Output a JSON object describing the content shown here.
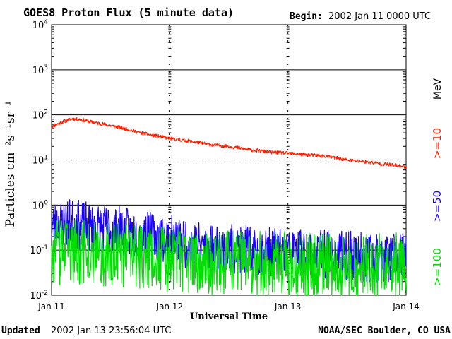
{
  "header": {
    "title": "GOES8 Proton Flux (5 minute data)",
    "begin_label": "Begin:",
    "begin_value": "2002 Jan 11 0000 UTC"
  },
  "footer": {
    "updated_label": "Updated",
    "updated_value": "2002 Jan 13 23:56:04 UTC",
    "source": "NOAA/SEC Boulder, CO USA"
  },
  "chart_data": {
    "type": "line",
    "title": "GOES8 Proton Flux (5 minute data)",
    "xlabel": "Universal Time",
    "ylabel": "Particles cm⁻²s⁻¹sr⁻¹",
    "y_scale": "log",
    "ylim": [
      0.01,
      10000
    ],
    "y_ticks": [
      {
        "value": 0.01,
        "base": "10",
        "exp": "-2"
      },
      {
        "value": 0.1,
        "base": "10",
        "exp": "-1"
      },
      {
        "value": 1,
        "base": "10",
        "exp": "0"
      },
      {
        "value": 10,
        "base": "10",
        "exp": "1"
      },
      {
        "value": 100,
        "base": "10",
        "exp": "2"
      },
      {
        "value": 1000,
        "base": "10",
        "exp": "3"
      },
      {
        "value": 10000,
        "base": "10",
        "exp": "4"
      }
    ],
    "x_range_hours": [
      0,
      72
    ],
    "x_ticks": [
      {
        "hour": 0,
        "label": "Jan 11"
      },
      {
        "hour": 24,
        "label": "Jan 12"
      },
      {
        "hour": 48,
        "label": "Jan 13"
      },
      {
        "hour": 72,
        "label": "Jan 14"
      }
    ],
    "unit_label": "MeV",
    "threshold_value": 10,
    "grid": true,
    "series": [
      {
        "name": ">=10",
        "color": "#ff2000",
        "x": [
          0,
          2,
          4,
          6,
          8,
          10,
          12,
          14,
          16,
          18,
          20,
          22,
          24,
          26,
          28,
          30,
          32,
          34,
          36,
          38,
          40,
          42,
          44,
          46,
          48,
          50,
          52,
          54,
          56,
          58,
          60,
          62,
          64,
          66,
          68,
          70,
          72
        ],
        "y": [
          55,
          68,
          82,
          78,
          70,
          64,
          58,
          52,
          46,
          40,
          36,
          33,
          30,
          28,
          26,
          24,
          22,
          21,
          20,
          18.5,
          17,
          16,
          15,
          14.5,
          14,
          13.5,
          13,
          12.5,
          12,
          11,
          10,
          9.5,
          9,
          8.5,
          8,
          7.5,
          7
        ]
      },
      {
        "name": ">=50",
        "color": "#1a00ff",
        "x": [
          0,
          2,
          4,
          6,
          8,
          10,
          12,
          14,
          16,
          18,
          20,
          22,
          24,
          26,
          28,
          30,
          32,
          34,
          36,
          38,
          40,
          42,
          44,
          46,
          48,
          50,
          52,
          54,
          56,
          58,
          60,
          62,
          64,
          66,
          68,
          70,
          72
        ],
        "y": [
          0.35,
          0.38,
          0.4,
          0.35,
          0.32,
          0.3,
          0.28,
          0.27,
          0.24,
          0.22,
          0.2,
          0.19,
          0.17,
          0.15,
          0.14,
          0.13,
          0.12,
          0.11,
          0.11,
          0.1,
          0.1,
          0.095,
          0.09,
          0.09,
          0.085,
          0.085,
          0.08,
          0.08,
          0.08,
          0.075,
          0.075,
          0.075,
          0.07,
          0.07,
          0.07,
          0.07,
          0.07
        ]
      },
      {
        "name": ">=100",
        "color": "#00e000",
        "x": [
          0,
          2,
          4,
          6,
          8,
          10,
          12,
          14,
          16,
          18,
          20,
          22,
          24,
          26,
          28,
          30,
          32,
          34,
          36,
          38,
          40,
          42,
          44,
          46,
          48,
          50,
          52,
          54,
          56,
          58,
          60,
          62,
          64,
          66,
          68,
          70,
          72
        ],
        "y": [
          0.035,
          0.04,
          0.04,
          0.038,
          0.036,
          0.035,
          0.034,
          0.034,
          0.032,
          0.032,
          0.031,
          0.03,
          0.026,
          0.025,
          0.024,
          0.024,
          0.024,
          0.023,
          0.023,
          0.023,
          0.022,
          0.022,
          0.022,
          0.022,
          0.022,
          0.022,
          0.021,
          0.021,
          0.021,
          0.021,
          0.021,
          0.021,
          0.021,
          0.021,
          0.021,
          0.021,
          0.021
        ]
      }
    ]
  }
}
